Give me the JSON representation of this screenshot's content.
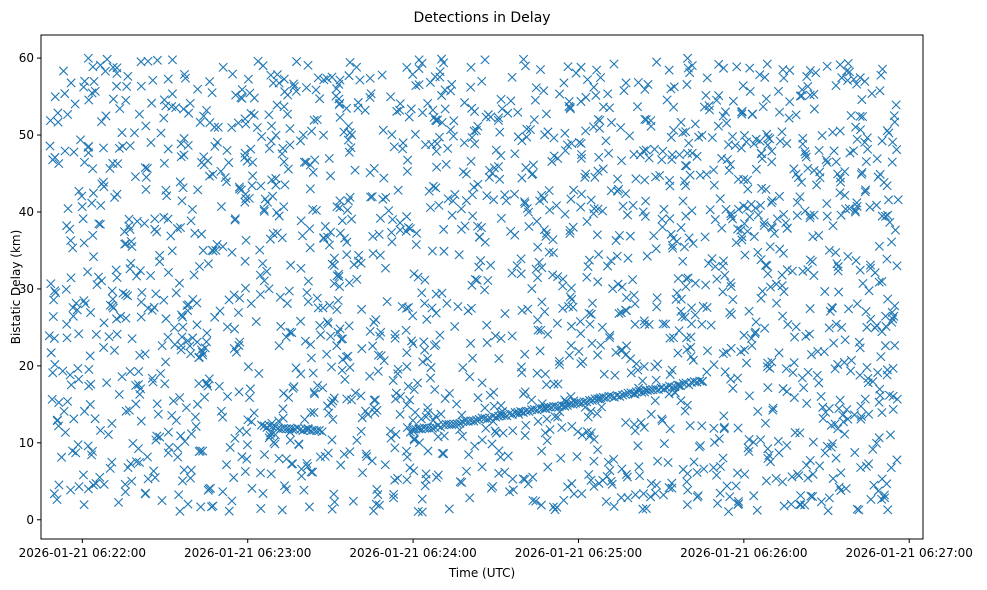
{
  "chart_data": {
    "type": "scatter",
    "title": "Detections in Delay",
    "xlabel": "Time (UTC)",
    "ylabel": "Bistatic Delay (km)",
    "marker": "x",
    "color": "#1f77b4",
    "grid": false,
    "legend": "none",
    "x_tick_labels": [
      "2026-01-21 06:22:00",
      "2026-01-21 06:23:00",
      "2026-01-21 06:24:00",
      "2026-01-21 06:25:00",
      "2026-01-21 06:26:00",
      "2026-01-21 06:27:00"
    ],
    "y_ticks": [
      0,
      10,
      20,
      30,
      40,
      50,
      60
    ],
    "xlim": [
      "2026-01-21 06:21:45",
      "2026-01-21 06:27:05"
    ],
    "ylim": [
      -2.5,
      63
    ],
    "series": [
      {
        "kind": "track",
        "x_start": "2026-01-21 06:23:05",
        "x_end": "2026-01-21 06:23:27",
        "y_start": 12.2,
        "y_end": 11.5
      },
      {
        "kind": "track",
        "x_start": "2026-01-21 06:23:59",
        "x_end": "2026-01-21 06:25:45",
        "y_start": 11.5,
        "y_end": 18.0
      },
      {
        "kind": "clutter",
        "x_start": "2026-01-21 06:21:48",
        "x_end": "2026-01-21 06:26:56",
        "y_min": 1,
        "y_max": 60,
        "count": 2000
      }
    ]
  }
}
